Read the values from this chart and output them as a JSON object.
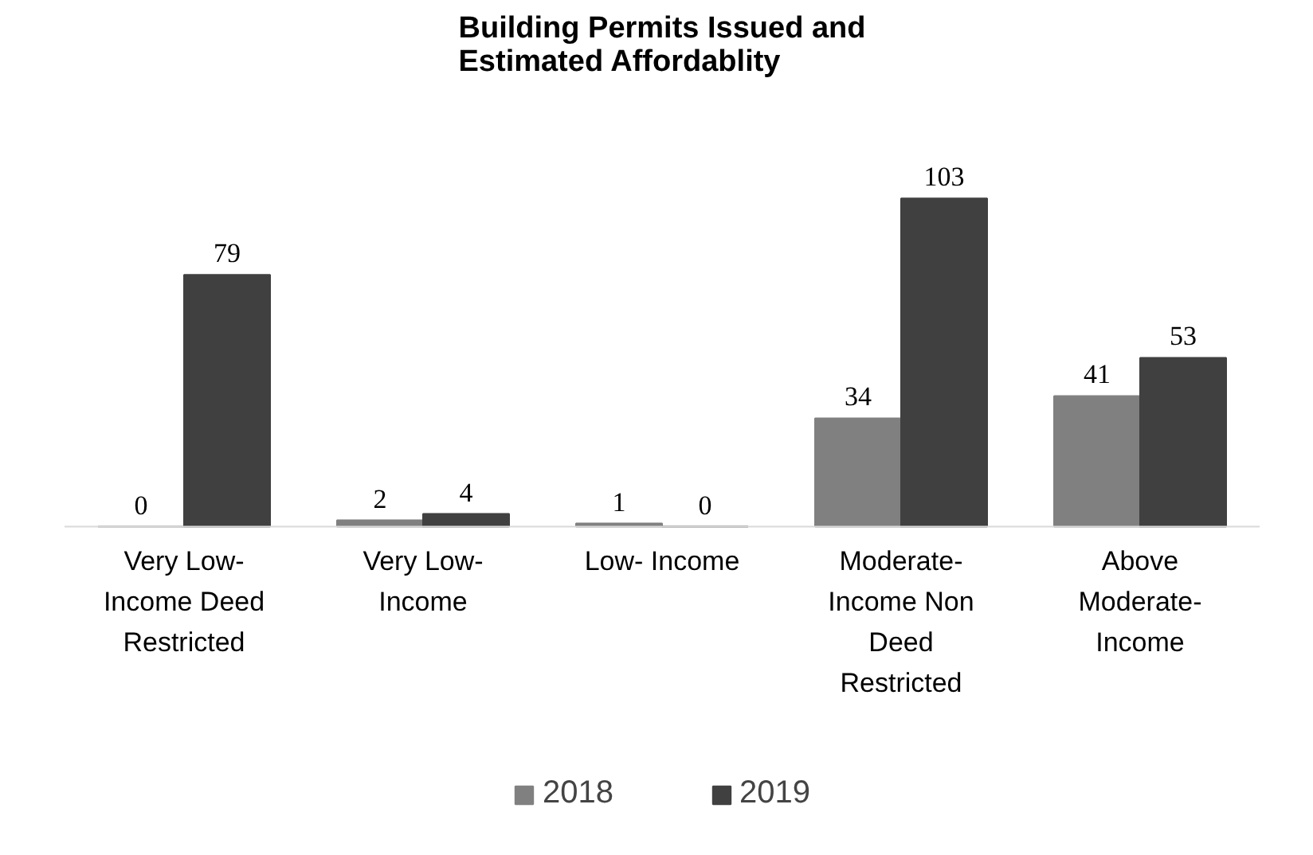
{
  "chart_data": {
    "type": "bar",
    "title": "Building Permits Issued and Estimated Affordablity",
    "categories": [
      "Very Low-Income Deed Restricted",
      "Very Low-Income",
      "Low- Income",
      "Moderate-Income Non Deed Restricted",
      "Above Moderate-Income"
    ],
    "series": [
      {
        "name": "2018",
        "color": "#808080",
        "values": [
          0,
          2,
          1,
          34,
          41
        ]
      },
      {
        "name": "2019",
        "color": "#404040",
        "values": [
          79,
          4,
          0,
          103,
          53
        ]
      }
    ],
    "data_labels": true,
    "grid": false,
    "legend": "bottom"
  }
}
